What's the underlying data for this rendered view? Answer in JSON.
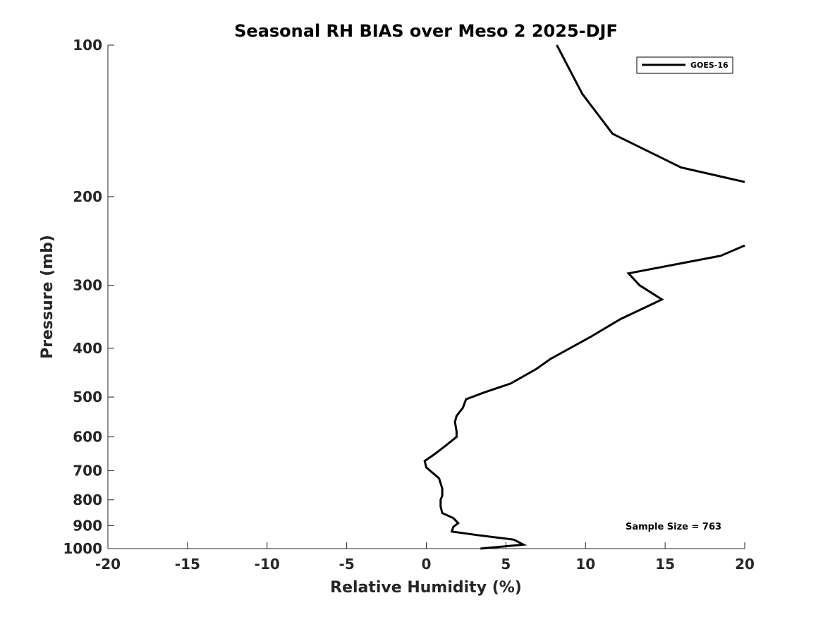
{
  "chart_data": {
    "type": "line",
    "title": "Seasonal RH BIAS over Meso 2  2025-DJF",
    "xlabel": "Relative Humidity (%)",
    "ylabel": "Pressure (mb)",
    "xlim": [
      -20,
      20
    ],
    "ylim": [
      100,
      1000
    ],
    "yscale": "log",
    "reverse_y": true,
    "xticks": [
      -20,
      -15,
      -10,
      -5,
      0,
      5,
      10,
      15,
      20
    ],
    "xtick_labels": [
      "-20",
      "-15",
      "-10",
      "-5",
      "0",
      "5",
      "10",
      "15",
      "20"
    ],
    "yticks": [
      100,
      200,
      300,
      400,
      500,
      600,
      700,
      800,
      900,
      1000
    ],
    "ytick_labels": [
      "100",
      "200",
      "300",
      "400",
      "500",
      "600",
      "700",
      "800",
      "900",
      "1000"
    ],
    "grid": false,
    "legend_position": "top-right",
    "annotation": "Sample Size = 763",
    "series": [
      {
        "name": "GOES-16",
        "color": "#000000",
        "segments": [
          [
            {
              "x": 8.2,
              "p": 100
            },
            {
              "x": 9.8,
              "p": 125
            },
            {
              "x": 11.7,
              "p": 150
            },
            {
              "x": 16.0,
              "p": 175
            },
            {
              "x": 20.0,
              "p": 187
            }
          ],
          [
            {
              "x": 20.0,
              "p": 250
            },
            {
              "x": 18.5,
              "p": 262
            },
            {
              "x": 12.7,
              "p": 284
            },
            {
              "x": 13.4,
              "p": 300
            },
            {
              "x": 14.8,
              "p": 320
            },
            {
              "x": 12.2,
              "p": 350
            },
            {
              "x": 10.3,
              "p": 380
            },
            {
              "x": 7.8,
              "p": 420
            },
            {
              "x": 6.9,
              "p": 440
            },
            {
              "x": 5.3,
              "p": 470
            },
            {
              "x": 3.6,
              "p": 490
            },
            {
              "x": 2.5,
              "p": 505
            },
            {
              "x": 2.3,
              "p": 525
            },
            {
              "x": 1.9,
              "p": 545
            },
            {
              "x": 1.8,
              "p": 560
            },
            {
              "x": 1.9,
              "p": 585
            },
            {
              "x": 1.9,
              "p": 600
            },
            {
              "x": 1.2,
              "p": 625
            },
            {
              "x": 0.5,
              "p": 650
            },
            {
              "x": -0.1,
              "p": 670
            },
            {
              "x": 0.0,
              "p": 690
            },
            {
              "x": 0.8,
              "p": 725
            },
            {
              "x": 1.0,
              "p": 760
            },
            {
              "x": 1.0,
              "p": 785
            },
            {
              "x": 0.9,
              "p": 800
            },
            {
              "x": 0.9,
              "p": 825
            },
            {
              "x": 1.0,
              "p": 850
            },
            {
              "x": 1.7,
              "p": 870
            },
            {
              "x": 2.0,
              "p": 890
            },
            {
              "x": 1.7,
              "p": 905
            },
            {
              "x": 1.6,
              "p": 925
            },
            {
              "x": 3.2,
              "p": 940
            },
            {
              "x": 5.5,
              "p": 960
            },
            {
              "x": 6.1,
              "p": 982
            },
            {
              "x": 3.4,
              "p": 1000
            }
          ]
        ]
      }
    ]
  }
}
